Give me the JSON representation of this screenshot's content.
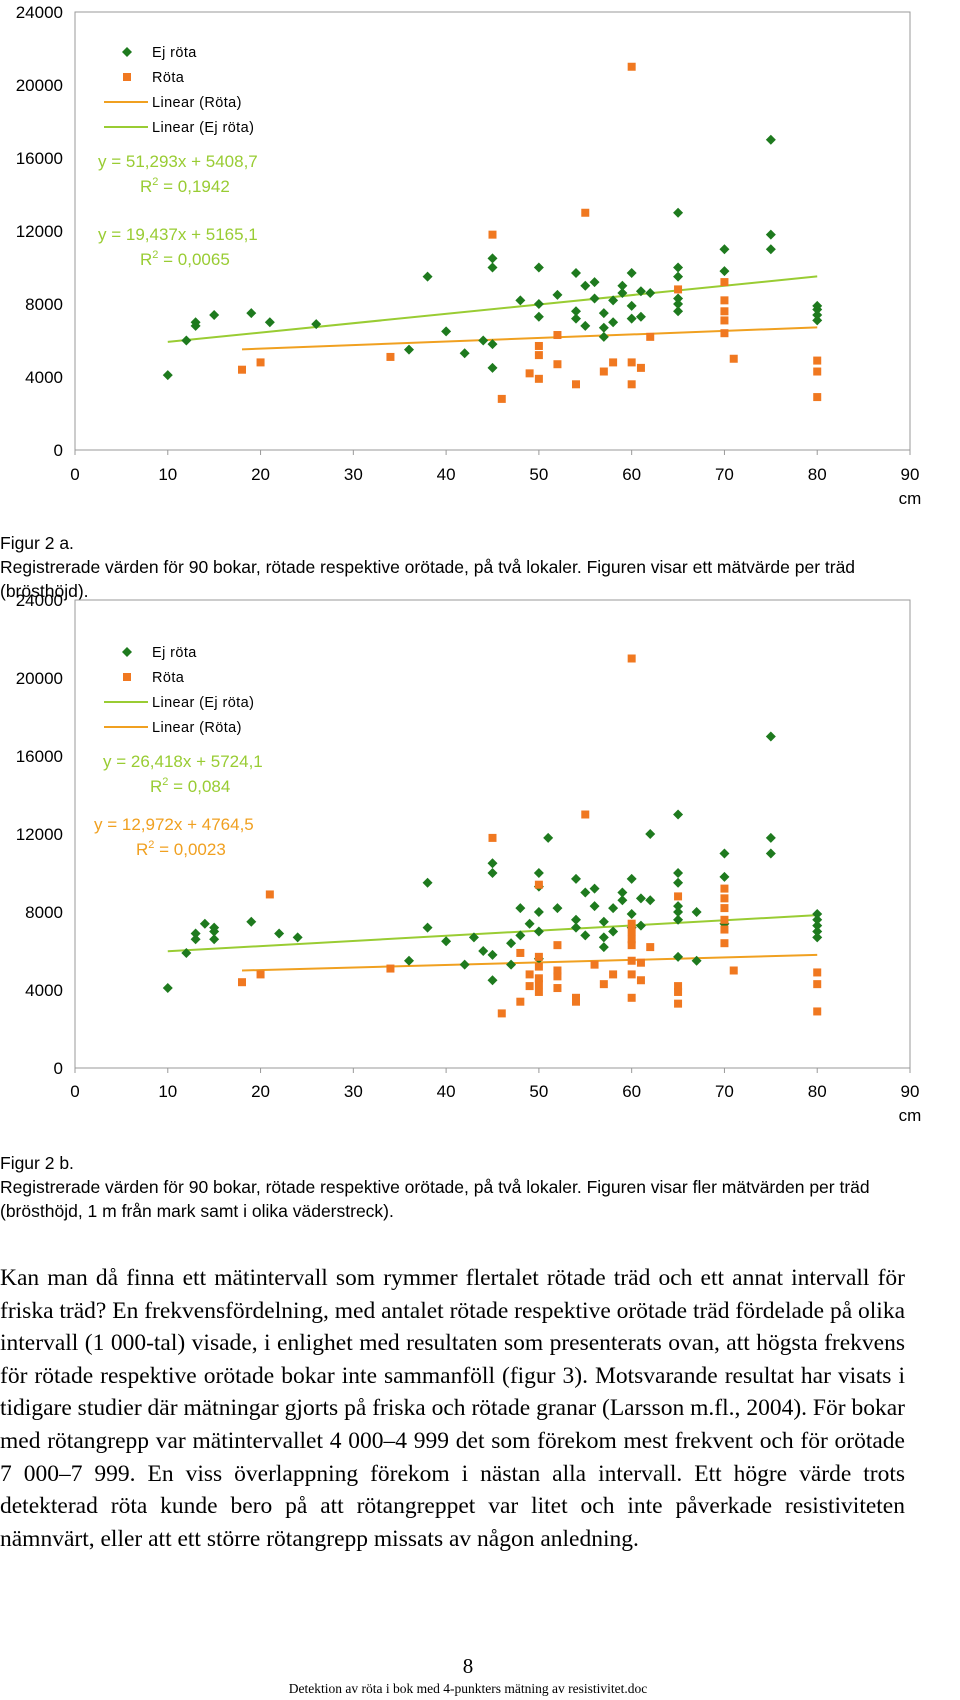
{
  "chart_data": [
    {
      "type": "scatter",
      "xlim": [
        0,
        90
      ],
      "ylim": [
        0,
        24000
      ],
      "x_ticks": [
        "0",
        "10",
        "20",
        "30",
        "40",
        "50",
        "60",
        "70",
        "80",
        "90"
      ],
      "y_ticks": [
        "0",
        "4000",
        "8000",
        "12000",
        "16000",
        "20000",
        "24000"
      ],
      "xlabel": "cm",
      "legend": [
        {
          "label": "Ej röta",
          "kind": "diamond",
          "color": "#1e7a1e"
        },
        {
          "label": "Röta",
          "kind": "square",
          "color": "#f07820"
        },
        {
          "label": "Linear (Röta)",
          "kind": "line",
          "color": "#f0a020"
        },
        {
          "label": "Linear (Ej röta)",
          "kind": "line",
          "color": "#99cc33"
        }
      ],
      "equations": [
        {
          "line1": "y = 51,293x + 5408,7",
          "line2": "R2 = 0,1942",
          "r2_base": "R",
          "r2_sup": "2",
          "r2_rest": " = 0,1942",
          "color": "#99cc33"
        },
        {
          "line1": "y = 19,437x + 5165,1",
          "line2": "R2 = 0,0065",
          "r2_base": "R",
          "r2_sup": "2",
          "r2_rest": " = 0,0065",
          "color": "#99cc33"
        }
      ],
      "trendlines": [
        {
          "series": "Ej röta",
          "slope": 51.293,
          "intercept": 5408.7,
          "x0": 10,
          "x1": 80,
          "color": "#99cc33"
        },
        {
          "series": "Röta",
          "slope": 19.437,
          "intercept": 5165.1,
          "x0": 18,
          "x1": 80,
          "color": "#f0a020"
        }
      ],
      "series": [
        {
          "name": "Ej röta",
          "marker": "diamond",
          "color": "#1e7a1e",
          "points": [
            [
              10,
              4100
            ],
            [
              12,
              6000
            ],
            [
              13,
              6800
            ],
            [
              13,
              7000
            ],
            [
              15,
              7400
            ],
            [
              19,
              7500
            ],
            [
              21,
              7000
            ],
            [
              26,
              6900
            ],
            [
              36,
              5500
            ],
            [
              38,
              9500
            ],
            [
              40,
              6500
            ],
            [
              42,
              5300
            ],
            [
              44,
              6000
            ],
            [
              45,
              4500
            ],
            [
              45,
              5800
            ],
            [
              45,
              10000
            ],
            [
              45,
              10500
            ],
            [
              48,
              8200
            ],
            [
              50,
              7300
            ],
            [
              50,
              8000
            ],
            [
              50,
              10000
            ],
            [
              52,
              8500
            ],
            [
              54,
              7200
            ],
            [
              54,
              7600
            ],
            [
              54,
              9700
            ],
            [
              55,
              6800
            ],
            [
              55,
              9000
            ],
            [
              56,
              8300
            ],
            [
              56,
              9200
            ],
            [
              57,
              6200
            ],
            [
              57,
              6700
            ],
            [
              57,
              7500
            ],
            [
              58,
              7000
            ],
            [
              58,
              8200
            ],
            [
              59,
              8600
            ],
            [
              59,
              9000
            ],
            [
              60,
              7200
            ],
            [
              60,
              7900
            ],
            [
              60,
              9700
            ],
            [
              61,
              7300
            ],
            [
              61,
              8700
            ],
            [
              62,
              8600
            ],
            [
              65,
              7600
            ],
            [
              65,
              8000
            ],
            [
              65,
              8300
            ],
            [
              65,
              9500
            ],
            [
              65,
              10000
            ],
            [
              65,
              13000
            ],
            [
              70,
              9800
            ],
            [
              70,
              11000
            ],
            [
              75,
              11000
            ],
            [
              75,
              11800
            ],
            [
              75,
              17000
            ],
            [
              80,
              7100
            ],
            [
              80,
              7400
            ],
            [
              80,
              7700
            ],
            [
              80,
              7900
            ]
          ]
        },
        {
          "name": "Röta",
          "marker": "square",
          "color": "#f07820",
          "points": [
            [
              18,
              4400
            ],
            [
              20,
              4800
            ],
            [
              34,
              5100
            ],
            [
              45,
              11800
            ],
            [
              46,
              2800
            ],
            [
              49,
              4200
            ],
            [
              50,
              3900
            ],
            [
              50,
              5200
            ],
            [
              50,
              5700
            ],
            [
              52,
              4700
            ],
            [
              52,
              6300
            ],
            [
              54,
              3600
            ],
            [
              55,
              13000
            ],
            [
              57,
              4300
            ],
            [
              58,
              4800
            ],
            [
              60,
              3600
            ],
            [
              60,
              4800
            ],
            [
              60,
              21000
            ],
            [
              61,
              4500
            ],
            [
              62,
              6200
            ],
            [
              65,
              8800
            ],
            [
              70,
              6400
            ],
            [
              70,
              7100
            ],
            [
              70,
              7600
            ],
            [
              70,
              8200
            ],
            [
              70,
              9200
            ],
            [
              71,
              5000
            ],
            [
              80,
              2900
            ],
            [
              80,
              4300
            ],
            [
              80,
              4900
            ]
          ]
        }
      ]
    },
    {
      "type": "scatter",
      "xlim": [
        0,
        90
      ],
      "ylim": [
        0,
        24000
      ],
      "x_ticks": [
        "0",
        "10",
        "20",
        "30",
        "40",
        "50",
        "60",
        "70",
        "80",
        "90"
      ],
      "y_ticks": [
        "0",
        "4000",
        "8000",
        "12000",
        "16000",
        "20000",
        "24000"
      ],
      "xlabel": "cm",
      "legend": [
        {
          "label": "Ej röta",
          "kind": "diamond",
          "color": "#1e7a1e"
        },
        {
          "label": "Röta",
          "kind": "square",
          "color": "#f07820"
        },
        {
          "label": "Linear (Ej röta)",
          "kind": "line",
          "color": "#99cc33"
        },
        {
          "label": "Linear (Röta)",
          "kind": "line",
          "color": "#f0a020"
        }
      ],
      "equations": [
        {
          "line1": "y = 26,418x + 5724,1",
          "line2": "R2 = 0,084",
          "r2_base": "R",
          "r2_sup": "2",
          "r2_rest": " = 0,084",
          "color": "#99cc33"
        },
        {
          "line1": "y = 12,972x + 4764,5",
          "line2": "R2 = 0,0023",
          "r2_base": "R",
          "r2_sup": "2",
          "r2_rest": " = 0,0023",
          "color": "#f0a020"
        }
      ],
      "trendlines": [
        {
          "series": "Ej röta",
          "slope": 26.418,
          "intercept": 5724.1,
          "x0": 10,
          "x1": 80,
          "color": "#99cc33"
        },
        {
          "series": "Röta",
          "slope": 12.972,
          "intercept": 4764.5,
          "x0": 18,
          "x1": 80,
          "color": "#f0a020"
        }
      ],
      "series": [
        {
          "name": "Ej röta",
          "marker": "diamond",
          "color": "#1e7a1e",
          "points": [
            [
              10,
              4100
            ],
            [
              12,
              5900
            ],
            [
              13,
              6600
            ],
            [
              13,
              6900
            ],
            [
              14,
              7400
            ],
            [
              15,
              6600
            ],
            [
              15,
              7000
            ],
            [
              15,
              7200
            ],
            [
              19,
              7500
            ],
            [
              22,
              6900
            ],
            [
              24,
              6700
            ],
            [
              36,
              5500
            ],
            [
              38,
              7200
            ],
            [
              38,
              9500
            ],
            [
              40,
              6500
            ],
            [
              42,
              5300
            ],
            [
              43,
              6700
            ],
            [
              44,
              6000
            ],
            [
              45,
              4500
            ],
            [
              45,
              5800
            ],
            [
              45,
              10000
            ],
            [
              45,
              10500
            ],
            [
              47,
              5300
            ],
            [
              47,
              6400
            ],
            [
              48,
              6800
            ],
            [
              48,
              8200
            ],
            [
              49,
              7400
            ],
            [
              50,
              5600
            ],
            [
              50,
              7000
            ],
            [
              50,
              8000
            ],
            [
              50,
              9300
            ],
            [
              50,
              10000
            ],
            [
              51,
              11800
            ],
            [
              52,
              8200
            ],
            [
              54,
              7200
            ],
            [
              54,
              7600
            ],
            [
              54,
              9700
            ],
            [
              55,
              6800
            ],
            [
              55,
              9000
            ],
            [
              56,
              8300
            ],
            [
              56,
              9200
            ],
            [
              57,
              6200
            ],
            [
              57,
              6700
            ],
            [
              57,
              7500
            ],
            [
              58,
              7000
            ],
            [
              58,
              8200
            ],
            [
              59,
              8600
            ],
            [
              59,
              9000
            ],
            [
              60,
              7200
            ],
            [
              60,
              7900
            ],
            [
              60,
              9700
            ],
            [
              61,
              7300
            ],
            [
              61,
              8700
            ],
            [
              62,
              8600
            ],
            [
              62,
              12000
            ],
            [
              65,
              5700
            ],
            [
              65,
              7600
            ],
            [
              65,
              8000
            ],
            [
              65,
              8300
            ],
            [
              65,
              9500
            ],
            [
              65,
              10000
            ],
            [
              65,
              13000
            ],
            [
              67,
              5500
            ],
            [
              67,
              8000
            ],
            [
              70,
              7400
            ],
            [
              70,
              9800
            ],
            [
              70,
              11000
            ],
            [
              75,
              11000
            ],
            [
              75,
              11800
            ],
            [
              75,
              17000
            ],
            [
              80,
              6700
            ],
            [
              80,
              7000
            ],
            [
              80,
              7300
            ],
            [
              80,
              7600
            ],
            [
              80,
              7900
            ]
          ]
        },
        {
          "name": "Röta",
          "marker": "square",
          "color": "#f07820",
          "points": [
            [
              18,
              4400
            ],
            [
              20,
              4800
            ],
            [
              21,
              8900
            ],
            [
              34,
              5100
            ],
            [
              45,
              11800
            ],
            [
              46,
              2800
            ],
            [
              48,
              3400
            ],
            [
              48,
              5900
            ],
            [
              49,
              4200
            ],
            [
              49,
              4800
            ],
            [
              50,
              3900
            ],
            [
              50,
              4300
            ],
            [
              50,
              4600
            ],
            [
              50,
              5200
            ],
            [
              50,
              5700
            ],
            [
              50,
              9400
            ],
            [
              52,
              4100
            ],
            [
              52,
              4700
            ],
            [
              52,
              5000
            ],
            [
              52,
              6300
            ],
            [
              54,
              3400
            ],
            [
              54,
              3600
            ],
            [
              55,
              13000
            ],
            [
              56,
              5300
            ],
            [
              57,
              4300
            ],
            [
              58,
              4800
            ],
            [
              60,
              3600
            ],
            [
              60,
              4800
            ],
            [
              60,
              5500
            ],
            [
              60,
              6300
            ],
            [
              60,
              6600
            ],
            [
              60,
              7000
            ],
            [
              60,
              7400
            ],
            [
              60,
              21000
            ],
            [
              61,
              4500
            ],
            [
              61,
              5400
            ],
            [
              62,
              6200
            ],
            [
              65,
              3300
            ],
            [
              65,
              3900
            ],
            [
              65,
              4200
            ],
            [
              65,
              8800
            ],
            [
              70,
              6400
            ],
            [
              70,
              7100
            ],
            [
              70,
              7600
            ],
            [
              70,
              8200
            ],
            [
              70,
              8700
            ],
            [
              70,
              9200
            ],
            [
              71,
              5000
            ],
            [
              80,
              2900
            ],
            [
              80,
              4300
            ],
            [
              80,
              4900
            ]
          ]
        }
      ]
    }
  ],
  "captions": {
    "fig2a_label": "Figur 2 a.",
    "fig2a_text": "Registrerade värden för 90 bokar, rötade respektive orötade, på två lokaler. Figuren visar ett mätvärde per träd (brösthöjd).",
    "fig2b_label": "Figur 2 b.",
    "fig2b_text": "Registrerade värden för 90 bokar, rötade respektive orötade, på två lokaler. Figuren visar fler mätvärden per träd (brösthöjd, 1 m från mark samt i olika väderstreck)."
  },
  "body": {
    "paragraph": "Kan man då finna ett mätintervall som rymmer flertalet rötade träd och ett annat intervall för friska träd? En frekvensfördelning, med antalet rötade respektive orötade träd fördelade på olika intervall (1 000-tal) visade, i enlighet med resultaten som presenterats ovan, att högsta frekvens för rötade respektive orötade bokar inte sammanföll (figur 3). Motsvarande resultat har visats i tidigare studier där mätningar gjorts på friska och rötade granar (Larsson m.fl., 2004). För bokar med rötangrepp var mätintervallet 4 000–4 999 det som förekom mest frekvent och för orötade 7 000–7 999. En viss överlappning förekom i nästan alla intervall. Ett högre värde trots detekterad röta kunde bero på att rötangreppet var litet och inte påverkade resistiviteten nämnvärt, eller att ett större rötangrepp missats av någon anledning."
  },
  "footer": {
    "page_number": "8",
    "doc_title": "Detektion av röta i bok med 4-punkters mätning av resistivitet.doc"
  }
}
